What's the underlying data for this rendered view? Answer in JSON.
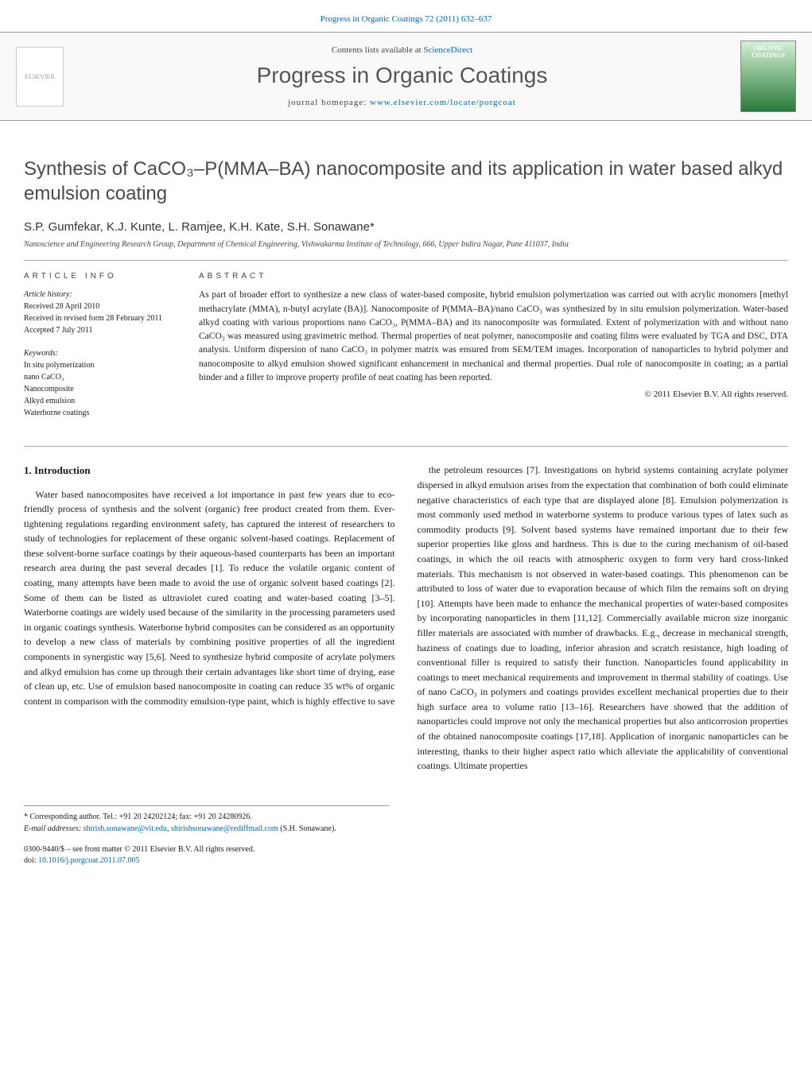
{
  "header": {
    "citation": "Progress in Organic Coatings 72 (2011) 632–637"
  },
  "banner": {
    "contents_prefix": "Contents lists available at ",
    "contents_link": "ScienceDirect",
    "journal_name": "Progress in Organic Coatings",
    "homepage_prefix": "journal homepage: ",
    "homepage_url": "www.elsevier.com/locate/porgcoat",
    "cover_label": "ORGANIC COATINGS",
    "publisher_logo_text": "ELSEVIER"
  },
  "title": "Synthesis of CaCO₃–P(MMA–BA) nanocomposite and its application in water based alkyd emulsion coating",
  "authors": "S.P. Gumfekar, K.J. Kunte, L. Ramjee, K.H. Kate, S.H. Sonawane*",
  "affiliation": "Nanoscience and Engineering Research Group, Department of Chemical Engineering, Vishwakarma Institute of Technology, 666, Upper Indira Nagar, Pune 411037, India",
  "article_info": {
    "heading": "article info",
    "history_label": "Article history:",
    "received": "Received 28 April 2010",
    "revised": "Received in revised form 28 February 2011",
    "accepted": "Accepted 7 July 2011",
    "keywords_label": "Keywords:",
    "keywords": [
      "In situ polymerization",
      "nano CaCO₃",
      "Nanocomposite",
      "Alkyd emulsion",
      "Waterborne coatings"
    ]
  },
  "abstract": {
    "heading": "abstract",
    "text": "As part of broader effort to synthesize a new class of water-based composite, hybrid emulsion polymerization was carried out with acrylic monomers [methyl methacrylate (MMA), n-butyl acrylate (BA)]. Nanocomposite of P(MMA–BA)/nano CaCO₃ was synthesized by in situ emulsion polymerization. Water-based alkyd coating with various proportions nano CaCO₃, P(MMA–BA) and its nanocomposite was formulated. Extent of polymerization with and without nano CaCO₃ was measured using gravimetric method. Thermal properties of neat polymer, nanocomposite and coating films were evaluated by TGA and DSC, DTA analysis. Uniform dispersion of nano CaCO₃ in polymer matrix was ensured from SEM/TEM images. Incorporation of nanoparticles to hybrid polymer and nanocomposite to alkyd emulsion showed significant enhancement in mechanical and thermal properties. Dual role of nanocomposite in coating; as a partial binder and a filler to improve property profile of neat coating has been reported.",
    "copyright": "© 2011 Elsevier B.V. All rights reserved."
  },
  "body": {
    "section_heading": "1. Introduction",
    "col1_text": "Water based nanocomposites have received a lot importance in past few years due to eco-friendly process of synthesis and the solvent (organic) free product created from them. Ever-tightening regulations regarding environment safety, has captured the interest of researchers to study of technologies for replacement of these organic solvent-based coatings. Replacement of these solvent-borne surface coatings by their aqueous-based counterparts has been an important research area during the past several decades [1]. To reduce the volatile organic content of coating, many attempts have been made to avoid the use of organic solvent based coatings [2]. Some of them can be listed as ultraviolet cured coating and water-based coating [3–5]. Waterborne coatings are widely used because of the similarity in the processing parameters used in organic coatings synthesis. Waterborne hybrid composites can be considered as an opportunity to develop a new class of materials by combining positive properties of all the ingredient components in synergistic way [5,6]. Need to synthesize hybrid composite of acrylate polymers and alkyd emulsion has come up through their certain advantages like short time of drying, ease of clean up, etc. Use of emulsion based nanocomposite in coating can reduce 35 wt% of organic content in comparison with the commodity emulsion-type paint, which is highly effective to save",
    "col2_text": "the petroleum resources [7]. Investigations on hybrid systems containing acrylate polymer dispersed in alkyd emulsion arises from the expectation that combination of both could eliminate negative characteristics of each type that are displayed alone [8]. Emulsion polymerization is most commonly used method in waterborne systems to produce various types of latex such as commodity products [9]. Solvent based systems have remained important due to their few superior properties like gloss and hardness. This is due to the curing mechanism of oil-based coatings, in which the oil reacts with atmospheric oxygen to form very hard cross-linked materials. This mechanism is not observed in water-based coatings. This phenomenon can be attributed to loss of water due to evaporation because of which film the remains soft on drying [10]. Attempts have been made to enhance the mechanical properties of water-based composites by incorporating nanoparticles in them [11,12]. Commercially available micron size inorganic filler materials are associated with number of drawbacks. E.g., decrease in mechanical strength, haziness of coatings due to loading, inferior abrasion and scratch resistance, high loading of conventional filler is required to satisfy their function. Nanoparticles found applicability in coatings to meet mechanical requirements and improvement in thermal stability of coatings. Use of nano CaCO₃ in polymers and coatings provides excellent mechanical properties due to their high surface area to volume ratio [13–16]. Researchers have showed that the addition of nanoparticles could improve not only the mechanical properties but also anticorrosion properties of the obtained nanocomposite coatings [17,18]. Application of inorganic nanoparticles can be interesting, thanks to their higher aspect ratio which alleviate the applicability of conventional coatings. Ultimate properties"
  },
  "footnotes": {
    "corresponding": "* Corresponding author. Tel.: +91 20 24202124; fax: +91 20 24280926.",
    "email_label": "E-mail addresses: ",
    "email1": "shirish.sonawane@vit.edu",
    "email2": "shirishsonawane@rediffmail.com",
    "email_suffix": " (S.H. Sonawane)."
  },
  "footer": {
    "issn_line": "0300-9440/$ – see front matter © 2011 Elsevier B.V. All rights reserved.",
    "doi_prefix": "doi:",
    "doi": "10.1016/j.porgcoat.2011.07.005"
  },
  "colors": {
    "link": "#0066aa",
    "text": "#1a1a1a",
    "heading_gray": "#4a4a4a",
    "rule": "#aaaaaa"
  },
  "typography": {
    "title_fontsize": 24,
    "journal_fontsize": 28,
    "body_fontsize": 12,
    "abstract_fontsize": 11.5,
    "info_fontsize": 10
  }
}
